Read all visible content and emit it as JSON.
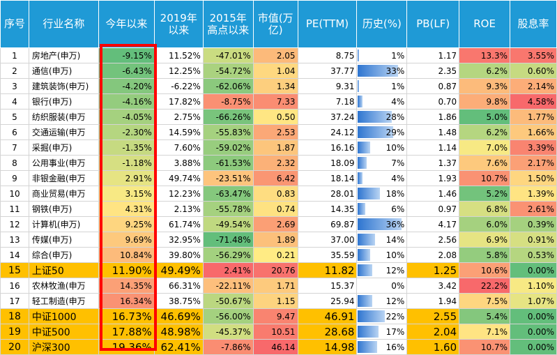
{
  "headers": [
    {
      "key": "index",
      "label": "序号"
    },
    {
      "key": "name",
      "label": "行业名称"
    },
    {
      "key": "ytd",
      "label": "今年以来"
    },
    {
      "key": "since2019",
      "label": "2019年以来"
    },
    {
      "key": "since2015",
      "label": "2015年高点以来"
    },
    {
      "key": "mcap",
      "label": "市值(万亿)"
    },
    {
      "key": "pe",
      "label": "PE(TTM)"
    },
    {
      "key": "pe_hist",
      "label": "历史(%)"
    },
    {
      "key": "pb",
      "label": "PB(LF)"
    },
    {
      "key": "roe",
      "label": "ROE"
    },
    {
      "key": "dividend",
      "label": "股息率"
    }
  ],
  "rows": [
    {
      "index": "1",
      "name": "房地产(申万)",
      "ytd": "-9.15%",
      "since2019": "11.52%",
      "since2015": "-47.01%",
      "mcap": "2.05",
      "pe": "8.75",
      "pe_hist": "1%",
      "pb": "1.17",
      "roe": "13.3%",
      "dividend": "3.55%"
    },
    {
      "index": "2",
      "name": "通信(申万)",
      "ytd": "-6.43%",
      "since2019": "12.25%",
      "since2015": "-54.72%",
      "mcap": "1.04",
      "pe": "37.77",
      "pe_hist": "33%",
      "pb": "2.35",
      "roe": "6.2%",
      "dividend": "0.60%"
    },
    {
      "index": "3",
      "name": "建筑装饰(申万)",
      "ytd": "-4.20%",
      "since2019": "-6.22%",
      "since2015": "-62.06%",
      "mcap": "1.34",
      "pe": "9.31",
      "pe_hist": "1%",
      "pb": "0.87",
      "roe": "9.3%",
      "dividend": "2.14%"
    },
    {
      "index": "4",
      "name": "银行(申万)",
      "ytd": "-4.16%",
      "since2019": "17.82%",
      "since2015": "-8.75%",
      "mcap": "7.33",
      "pe": "7.18",
      "pe_hist": "4%",
      "pb": "0.70",
      "roe": "9.8%",
      "dividend": "4.58%"
    },
    {
      "index": "5",
      "name": "纺织服装(申万",
      "ytd": "-4.05%",
      "since2019": "2.75%",
      "since2015": "-66.26%",
      "mcap": "0.50",
      "pe": "37.24",
      "pe_hist": "28%",
      "pb": "1.86",
      "roe": "5.0%",
      "dividend": "1.77%"
    },
    {
      "index": "6",
      "name": "交通运输(申万",
      "ytd": "-2.30%",
      "since2019": "14.59%",
      "since2015": "-55.83%",
      "mcap": "2.53",
      "pe": "24.12",
      "pe_hist": "29%",
      "pb": "1.48",
      "roe": "6.2%",
      "dividend": "1.66%"
    },
    {
      "index": "7",
      "name": "采掘(申万)",
      "ytd": "-1.35%",
      "since2019": "7.60%",
      "since2015": "-59.02%",
      "mcap": "1.87",
      "pe": "16.16",
      "pe_hist": "10%",
      "pb": "1.14",
      "roe": "7.0%",
      "dividend": "3.39%"
    },
    {
      "index": "8",
      "name": "公用事业(申万",
      "ytd": "-1.18%",
      "since2019": "3.88%",
      "since2015": "-61.53%",
      "mcap": "2.32",
      "pe": "18.09",
      "pe_hist": "7%",
      "pb": "1.37",
      "roe": "7.6%",
      "dividend": "2.17%"
    },
    {
      "index": "9",
      "name": "非银金融(申万",
      "ytd": "2.91%",
      "since2019": "49.74%",
      "since2015": "-23.51%",
      "mcap": "6.42",
      "pe": "18.14",
      "pe_hist": "4%",
      "pb": "1.93",
      "roe": "10.7%",
      "dividend": "1.50%"
    },
    {
      "index": "10",
      "name": "商业贸易(申万",
      "ytd": "3.15%",
      "since2019": "12.23%",
      "since2015": "-63.47%",
      "mcap": "0.83",
      "pe": "28.01",
      "pe_hist": "18%",
      "pb": "1.46",
      "roe": "5.2%",
      "dividend": "1.39%"
    },
    {
      "index": "11",
      "name": "钢铁(申万)",
      "ytd": "4.31%",
      "since2019": "2.13%",
      "since2015": "-55.78%",
      "mcap": "0.74",
      "pe": "14.35",
      "pe_hist": "6%",
      "pb": "0.97",
      "roe": "6.8%",
      "dividend": "2.61%"
    },
    {
      "index": "12",
      "name": "计算机(申万)",
      "ytd": "9.25%",
      "since2019": "61.74%",
      "since2015": "-49.54%",
      "mcap": "2.69",
      "pe": "69.87",
      "pe_hist": "36%",
      "pb": "4.17",
      "roe": "6.0%",
      "dividend": "0.39%"
    },
    {
      "index": "13",
      "name": "传媒(申万)",
      "ytd": "9.69%",
      "since2019": "32.95%",
      "since2015": "-71.48%",
      "mcap": "1.89",
      "pe": "37.00",
      "pe_hist": "14%",
      "pb": "2.56",
      "roe": "6.9%",
      "dividend": "0.91%"
    },
    {
      "index": "14",
      "name": "综合(申万)",
      "ytd": "10.84%",
      "since2019": "39.80%",
      "since2015": "-56.29%",
      "mcap": "0.21",
      "pe": "35.59",
      "pe_hist": "10%",
      "pb": "2.08",
      "roe": "5.8%",
      "dividend": "0.53%"
    },
    {
      "index": "15",
      "name": "上证50",
      "ytd": "11.90%",
      "since2019": "49.49%",
      "since2015": "2.41%",
      "mcap": "20.76",
      "pe": "11.82",
      "pe_hist": "12%",
      "pb": "1.25",
      "roe": "10.6%",
      "dividend": "0.00%"
    },
    {
      "index": "16",
      "name": "农林牧渔(申万",
      "ytd": "14.35%",
      "since2019": "66.31%",
      "since2015": "-22.11%",
      "mcap": "1.71",
      "pe": "15.37",
      "pe_hist": "0%",
      "pb": "3.42",
      "roe": "22.2%",
      "dividend": "1.10%"
    },
    {
      "index": "17",
      "name": "轻工制造(申万",
      "ytd": "16.34%",
      "since2019": "38.75%",
      "since2015": "-50.67%",
      "mcap": "1.15",
      "pe": "25.94",
      "pe_hist": "12%",
      "pb": "1.94",
      "roe": "7.5%",
      "dividend": "1.07%"
    },
    {
      "index": "18",
      "name": "中证1000",
      "ytd": "16.73%",
      "since2019": "46.69%",
      "since2015": "-56.00%",
      "mcap": "9.47",
      "pe": "46.91",
      "pe_hist": "22%",
      "pb": "2.55",
      "roe": "5.4%",
      "dividend": "0.00%"
    },
    {
      "index": "19",
      "name": "中证500",
      "ytd": "17.88%",
      "since2019": "48.98%",
      "since2015": "-45.37%",
      "mcap": "10.51",
      "pe": "28.68",
      "pe_hist": "17%",
      "pb": "2.04",
      "roe": "7.1%",
      "dividend": "0.00%"
    },
    {
      "index": "20",
      "name": "沪深300",
      "ytd": "19.36%",
      "since2019": "62.41%",
      "since2015": "-7.86%",
      "mcap": "46.14",
      "pe": "14.98",
      "pe_hist": "16%",
      "pb": "1.60",
      "roe": "10.7%",
      "dividend": "0.00%"
    }
  ],
  "highlight_rows": [
    "15",
    "18",
    "19",
    "20"
  ],
  "highlight_color": "#ffc000",
  "header_color": "#1f9ad6",
  "frame_color": "#ff0000"
}
